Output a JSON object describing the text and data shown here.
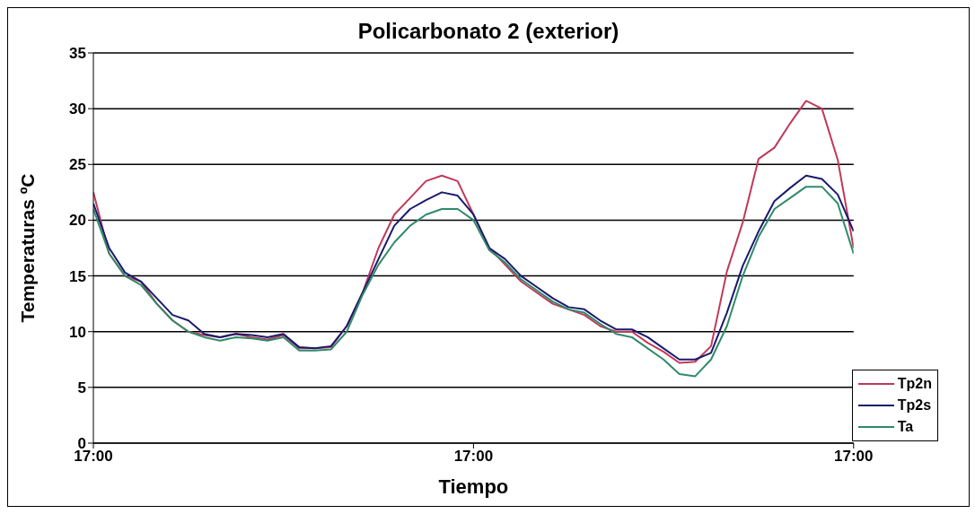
{
  "chart_data": {
    "type": "line",
    "title": "Policarbonato 2 (exterior)",
    "xlabel": "Tiempo",
    "ylabel": "Temperaturas ºC",
    "categories": [
      "17:00",
      null,
      null,
      null,
      null,
      null,
      null,
      null,
      null,
      null,
      null,
      null,
      null,
      null,
      null,
      null,
      null,
      null,
      null,
      null,
      null,
      null,
      null,
      null,
      "17:00",
      null,
      null,
      null,
      null,
      null,
      null,
      null,
      null,
      null,
      null,
      null,
      null,
      null,
      null,
      null,
      null,
      null,
      null,
      null,
      null,
      null,
      null,
      null,
      "17:00"
    ],
    "ylim": [
      0,
      35
    ],
    "yticks": [
      0,
      5,
      10,
      15,
      20,
      25,
      30,
      35
    ],
    "grid": "y",
    "legend": "bottom right",
    "marker": "none",
    "line_style": "solid",
    "series": [
      {
        "name": "Tp2n",
        "color": "#c0395a",
        "values": [
          22.5,
          17,
          15,
          14.5,
          12.5,
          11,
          10,
          9.7,
          9.5,
          9.8,
          9.5,
          9.3,
          9.7,
          8.5,
          8.5,
          8.6,
          10.5,
          13.5,
          17.5,
          20.5,
          22,
          23.5,
          24,
          23.5,
          20.5,
          17.5,
          16,
          14.5,
          13.5,
          12.5,
          12,
          11.5,
          10.5,
          10,
          10,
          9,
          8.2,
          7.2,
          7.3,
          8.7,
          15.4,
          19.8,
          25.5,
          26.5,
          28.7,
          30.7,
          30,
          25.4,
          17.5
        ]
      },
      {
        "name": "Tp2s",
        "color": "#1a1a6e",
        "values": [
          21.5,
          17.5,
          15.3,
          14.5,
          13,
          11.5,
          11,
          9.8,
          9.5,
          9.8,
          9.7,
          9.5,
          9.8,
          8.6,
          8.5,
          8.7,
          10.5,
          13.5,
          16.5,
          19.5,
          21,
          21.8,
          22.5,
          22.2,
          20.5,
          17.5,
          16.5,
          15,
          14,
          13,
          12.2,
          12,
          11,
          10.2,
          10.2,
          9.5,
          8.5,
          7.5,
          7.5,
          8.1,
          11.7,
          15.9,
          19,
          21.7,
          22.9,
          24,
          23.7,
          22.3,
          19
        ]
      },
      {
        "name": "Ta",
        "color": "#2e8b6a",
        "values": [
          21,
          17,
          15,
          14.2,
          12.5,
          11,
          10,
          9.5,
          9.2,
          9.5,
          9.4,
          9.2,
          9.5,
          8.3,
          8.3,
          8.4,
          10,
          13.3,
          16,
          18,
          19.5,
          20.5,
          21,
          21,
          20,
          17.3,
          16.2,
          14.7,
          13.7,
          12.7,
          12,
          11.7,
          10.7,
          9.8,
          9.5,
          8.5,
          7.5,
          6.2,
          6,
          7.5,
          10.5,
          15,
          18.5,
          21,
          22,
          23,
          23,
          21.5,
          17
        ]
      }
    ]
  }
}
